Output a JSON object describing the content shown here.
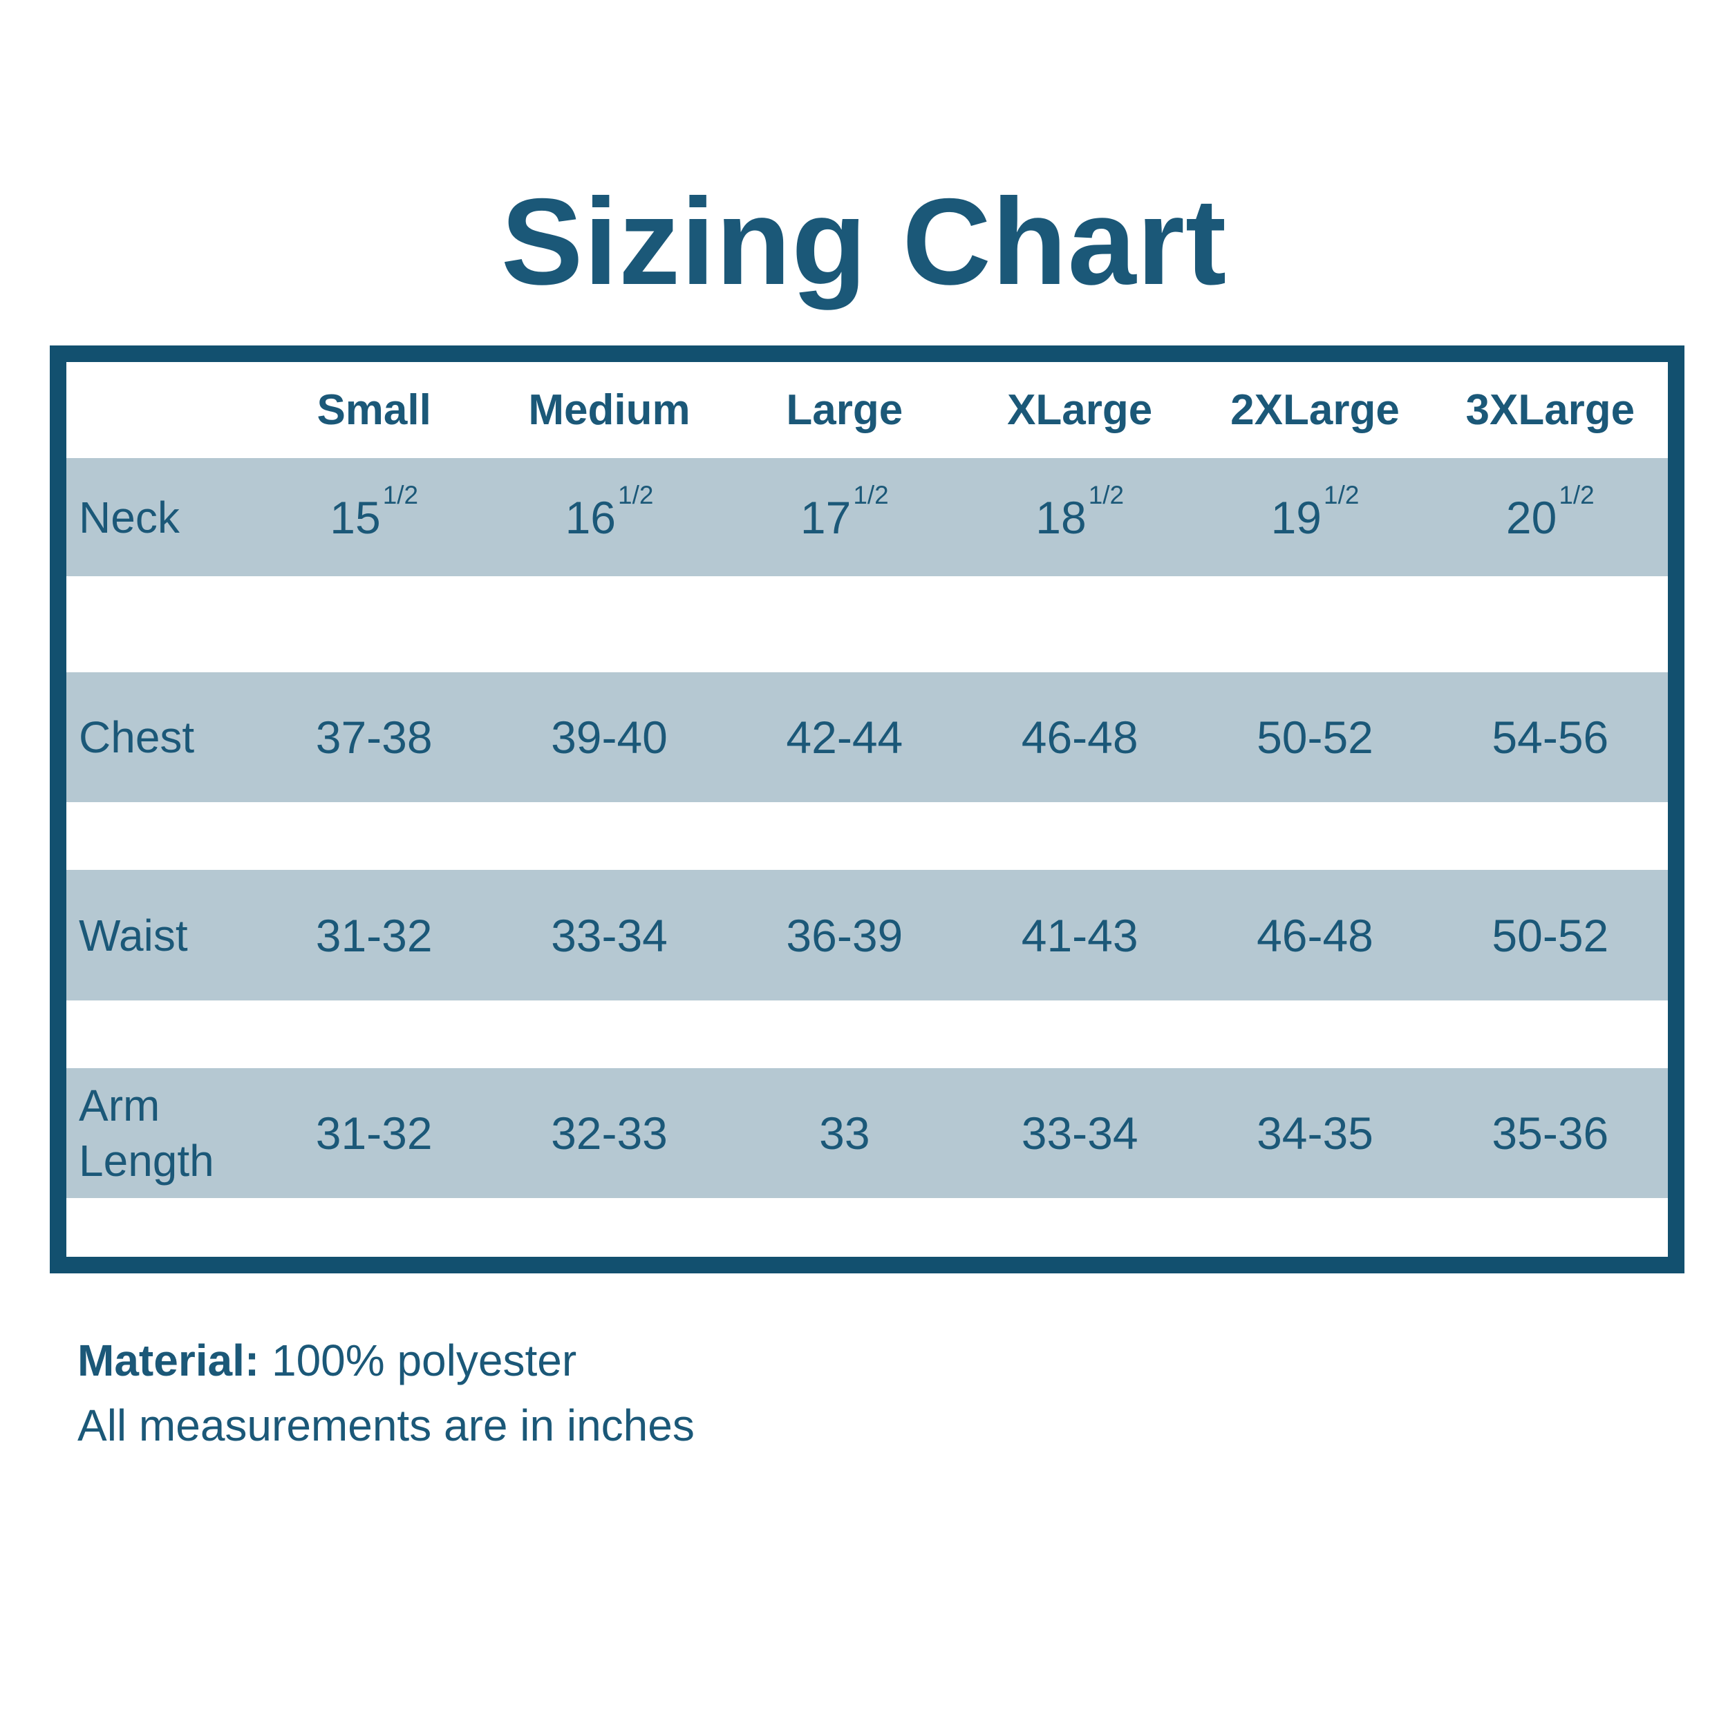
{
  "title": "Sizing Chart",
  "table": {
    "columns": [
      "Small",
      "Medium",
      "Large",
      "XLarge",
      "2XLarge",
      "3XLarge"
    ],
    "rows": [
      {
        "label": "Neck",
        "values": [
          {
            "base": "15",
            "frac": "1/2"
          },
          {
            "base": "16",
            "frac": "1/2"
          },
          {
            "base": "17",
            "frac": "1/2"
          },
          {
            "base": "18",
            "frac": "1/2"
          },
          {
            "base": "19",
            "frac": "1/2"
          },
          {
            "base": "20",
            "frac": "1/2"
          }
        ]
      },
      {
        "label": "Chest",
        "values": [
          "37-38",
          "39-40",
          "42-44",
          "46-48",
          "50-52",
          "54-56"
        ]
      },
      {
        "label": "Waist",
        "values": [
          "31-32",
          "33-34",
          "36-39",
          "41-43",
          "46-48",
          "50-52"
        ]
      },
      {
        "label": "Arm Length",
        "values": [
          "31-32",
          "32-33",
          "33",
          "33-34",
          "34-35",
          "35-36"
        ]
      }
    ]
  },
  "footer": {
    "material_label": "Material:",
    "material_value": "100% polyester",
    "note": "All measurements are in inches"
  },
  "colors": {
    "ink": "#1B5878",
    "border": "#12506F",
    "band": "#B5C8D2",
    "background": "#FFFFFF"
  },
  "chart_data": {
    "type": "table",
    "title": "Sizing Chart",
    "columns": [
      "",
      "Small",
      "Medium",
      "Large",
      "XLarge",
      "2XLarge",
      "3XLarge"
    ],
    "rows": [
      [
        "Neck",
        "15 1/2",
        "16 1/2",
        "17 1/2",
        "18 1/2",
        "19 1/2",
        "20 1/2"
      ],
      [
        "Chest",
        "37-38",
        "39-40",
        "42-44",
        "46-48",
        "50-52",
        "54-56"
      ],
      [
        "Waist",
        "31-32",
        "33-34",
        "36-39",
        "41-43",
        "46-48",
        "50-52"
      ],
      [
        "Arm Length",
        "31-32",
        "32-33",
        "33",
        "33-34",
        "34-35",
        "35-36"
      ]
    ],
    "notes": [
      "Material: 100% polyester",
      "All measurements are in inches"
    ],
    "units": "inches",
    "layout_hints": {
      "banded_rows": true,
      "band_color": "#B5C8D2",
      "outer_border_color": "#12506F",
      "outer_border_px": 24
    }
  }
}
